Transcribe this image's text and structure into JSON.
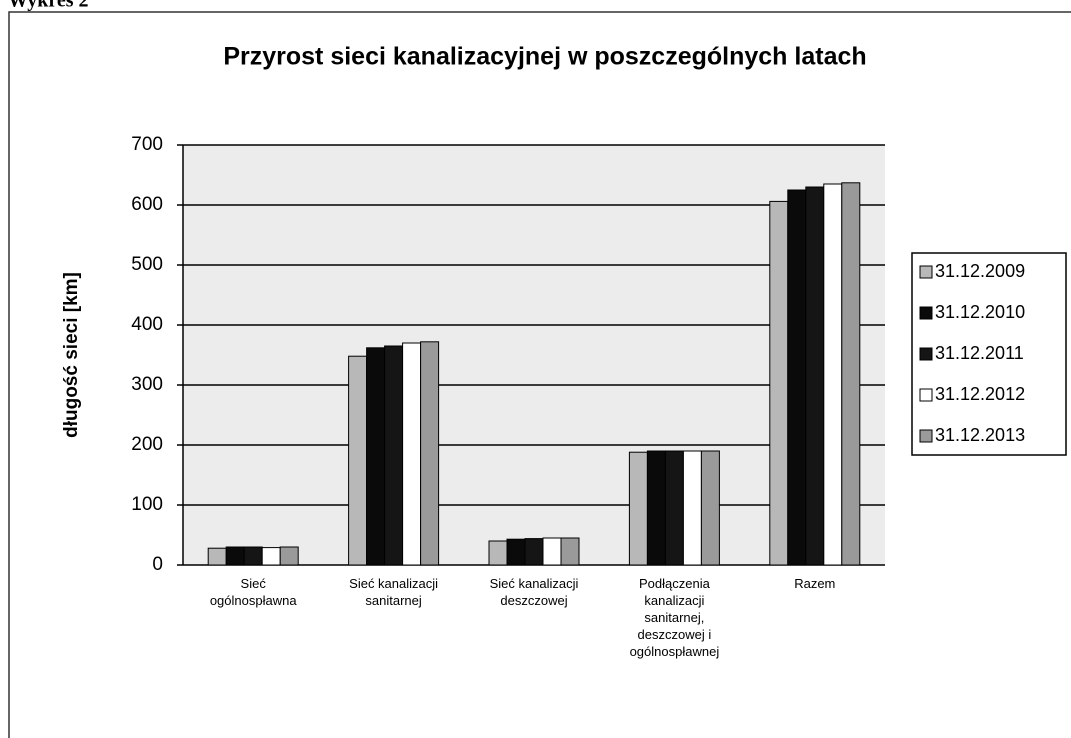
{
  "header": "Wykres 2",
  "chart_data": {
    "type": "bar",
    "title": "Przyrost sieci kanalizacyjnej w poszczególnych latach",
    "y_label": "długość sieci [km]",
    "categories": [
      "Sieć\nogólnospławna",
      "Sieć kanalizacji\nsanitarnej",
      "Sieć kanalizacji\ndeszczowej",
      "Podłączenia\nkanalizacji\nsanitarnej,\ndeszczowej i\nogólnospławnej",
      "Razem"
    ],
    "series": [
      {
        "name": "31.12.2009",
        "color": "#b8b8b8",
        "values": [
          28,
          348,
          40,
          188,
          606
        ]
      },
      {
        "name": "31.12.2010",
        "color": "#0a0a0a",
        "values": [
          30,
          362,
          43,
          190,
          625
        ]
      },
      {
        "name": "31.12.2011",
        "color": "#151515",
        "values": [
          30,
          365,
          44,
          190,
          630
        ]
      },
      {
        "name": "31.12.2012",
        "color": "#ffffff",
        "values": [
          29,
          370,
          45,
          190,
          635
        ]
      },
      {
        "name": "31.12.2013",
        "color": "#9a9a9a",
        "values": [
          30,
          372,
          45,
          190,
          637
        ]
      }
    ],
    "ylim": [
      0,
      700
    ],
    "yticks": [
      0,
      100,
      200,
      300,
      400,
      500,
      600,
      700
    ],
    "grid": true,
    "legend": "right"
  }
}
